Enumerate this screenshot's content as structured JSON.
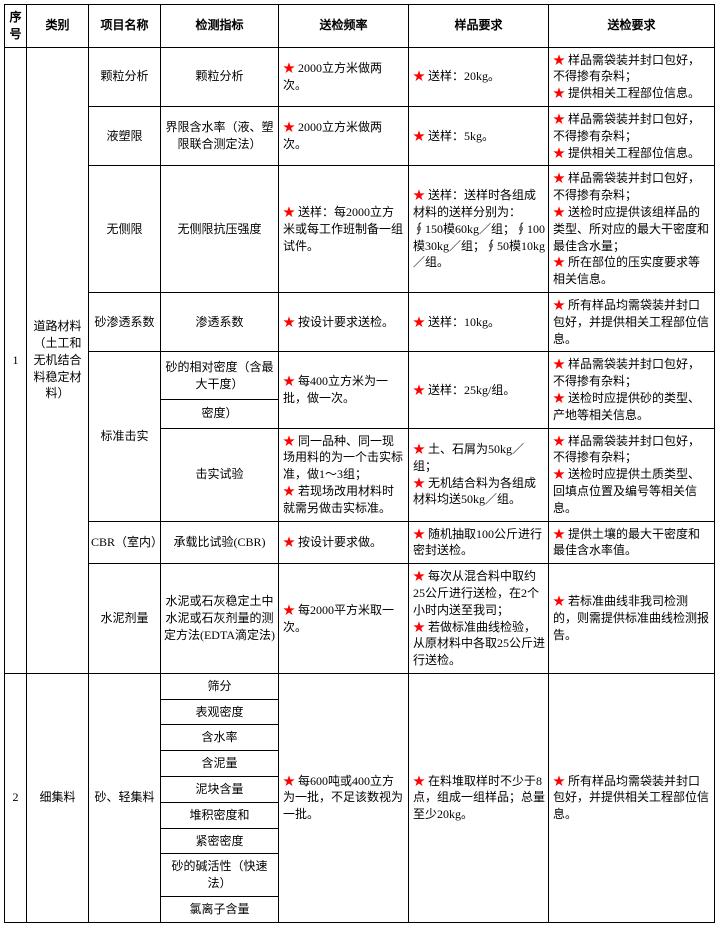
{
  "headers": {
    "seq": "序号",
    "category": "类别",
    "project": "项目名称",
    "indicator": "检测指标",
    "frequency": "送检频率",
    "sample": "样品要求",
    "requirement": "送检要求"
  },
  "section1": {
    "seq": "1",
    "category": "道路材料（土工和无机结合料稳定材料）",
    "rows": {
      "r1": {
        "project": "颗粒分析",
        "indicator": "颗粒分析",
        "frequency_text": " 2000立方米做两次。",
        "sample_text": " 送样：20kg。",
        "req_l1": " 样品需袋装并封口包好，不得掺有杂料；",
        "req_l2": " 提供相关工程部位信息。"
      },
      "r2": {
        "project": "液塑限",
        "indicator": "界限含水率（液、塑限联合测定法）",
        "frequency_text": " 2000立方米做两次。",
        "sample_text": " 送样：5kg。",
        "req_l1": " 样品需袋装并封口包好，不得掺有杂料；",
        "req_l2": " 提供相关工程部位信息。"
      },
      "r3": {
        "project": "无侧限",
        "indicator": "无侧限抗压强度",
        "frequency_text": " 送样：每2000立方米或每工作班制备一组试件。",
        "sample_text": " 送样：送样时各组成材料的送样分别为：∮150模60kg／组；∮100模30kg／组；∮50模10kg／组。",
        "req_l1": " 样品需袋装并封口包好，不得掺有杂料；",
        "req_l2": " 送检时应提供该组样品的类型、所对应的最大干密度和最佳含水量；",
        "req_l3": " 所在部位的压实度要求等相关信息。"
      },
      "r4": {
        "project": "砂渗透系数",
        "indicator": "渗透系数",
        "frequency_text": " 按设计要求送检。",
        "sample_text": " 送样：10kg。",
        "req_l1": " 所有样品均需袋装并封口包好，并提供相关工程部位信息。"
      },
      "r5": {
        "project": "标准击实",
        "indicator_a": "砂的相对密度（含最大干度）",
        "indicator_b": "密度）",
        "frequency_ab": " 每400立方米为一批，做一次。",
        "sample_ab": " 送样：25kg/组。",
        "req_ab_l1": " 样品需袋装并封口包好，不得掺有杂料；",
        "req_ab_l2": " 送检时应提供砂的类型、产地等相关信息。",
        "indicator_c": "击实试验",
        "freq_c_l1": " 同一品种、同一现场用料的为一个击实标准，做1～3组；",
        "freq_c_l2": " 若现场改用材料时就需另做击实标准。",
        "sample_c_l1": " 土、石屑为50kg／组；",
        "sample_c_l2": " 无机结合料为各组成材料均送50kg／组。",
        "req_c_l1": " 样品需袋装并封口包好，不得掺有杂料；",
        "req_c_l2": " 送检时应提供土质类型、回填点位置及编号等相关信息。"
      },
      "r6": {
        "project": "CBR（室内）",
        "indicator": "承载比试验(CBR)",
        "frequency_text": " 按设计要求做。",
        "sample_text": " 随机抽取100公斤进行密封送检。",
        "req_l1": " 提供土壤的最大干密度和最佳含水率值。"
      },
      "r7": {
        "project": "水泥剂量",
        "indicator": "水泥或石灰稳定土中水泥或石灰剂量的测定方法(EDTA滴定法)",
        "frequency_text": " 每2000平方米取一次。",
        "sample_l1": " 每次从混合料中取约25公斤进行送检，在2个小时内送至我司；",
        "sample_l2": " 若做标准曲线检验，从原材料中各取25公斤进行送检。",
        "req_l1": " 若标准曲线非我司检测的，则需提供标准曲线检测报告。"
      }
    }
  },
  "section2": {
    "seq": "2",
    "category": "细集料",
    "project": "砂、轻集料",
    "indicators": {
      "i1": "筛分",
      "i2": "表观密度",
      "i3": "含水率",
      "i4": "含泥量",
      "i5": "泥块含量",
      "i6": "堆积密度和",
      "i7": "紧密密度",
      "i8": "砂的碱活性（快速法）",
      "i9": "氯离子含量"
    },
    "frequency_text": " 每600吨或400立方为一批，不足该数视为一批。",
    "sample_text": " 在料堆取样时不少于8点，组成一组样品；总量至少20kg。",
    "req_text": " 所有样品均需袋装并封口包好，并提供相关工程部位信息。"
  }
}
